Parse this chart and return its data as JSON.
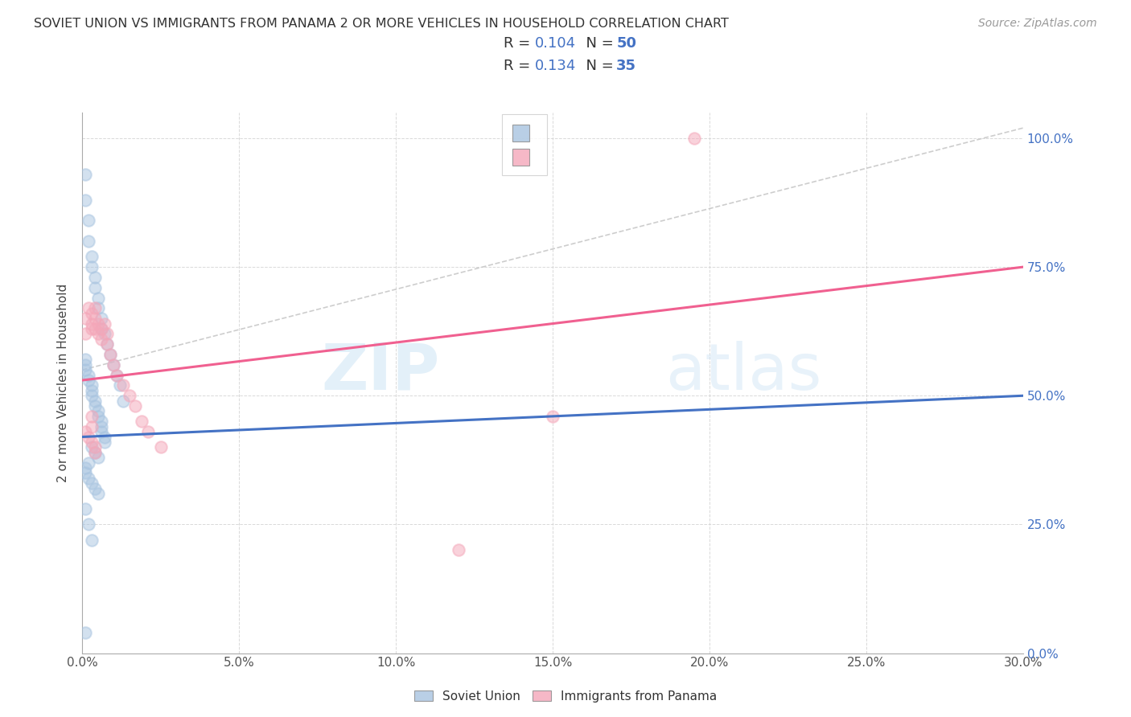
{
  "title": "SOVIET UNION VS IMMIGRANTS FROM PANAMA 2 OR MORE VEHICLES IN HOUSEHOLD CORRELATION CHART",
  "source": "Source: ZipAtlas.com",
  "ylabel": "2 or more Vehicles in Household",
  "legend_bottom_label1": "Soviet Union",
  "legend_bottom_label2": "Immigrants from Panama",
  "soviet_color": "#a8c4e0",
  "panama_color": "#f4a7b9",
  "soviet_line_color": "#4472c4",
  "panama_line_color": "#f06090",
  "diag_line_color": "#c8c8c8",
  "xmin": 0.0,
  "xmax": 0.3,
  "ymin": 0.0,
  "ymax": 1.05,
  "x_tick_vals": [
    0.0,
    0.05,
    0.1,
    0.15,
    0.2,
    0.25,
    0.3
  ],
  "x_tick_labels": [
    "0.0%",
    "5.0%",
    "10.0%",
    "15.0%",
    "20.0%",
    "25.0%",
    "30.0%"
  ],
  "y_tick_vals": [
    0.0,
    0.25,
    0.5,
    0.75,
    1.0
  ],
  "y_tick_labels": [
    "0.0%",
    "25.0%",
    "50.0%",
    "75.0%",
    "100.0%"
  ],
  "legend_r1": "R = 0.104",
  "legend_n1": "N = 50",
  "legend_r2": "R = 0.134",
  "legend_n2": "N = 35",
  "soviet_trend": [
    0.42,
    0.5
  ],
  "panama_trend": [
    0.53,
    0.75
  ],
  "soviet_x": [
    0.001,
    0.001,
    0.002,
    0.002,
    0.003,
    0.003,
    0.004,
    0.004,
    0.005,
    0.005,
    0.006,
    0.006,
    0.007,
    0.008,
    0.009,
    0.01,
    0.011,
    0.012,
    0.013,
    0.001,
    0.001,
    0.001,
    0.002,
    0.002,
    0.003,
    0.003,
    0.003,
    0.004,
    0.004,
    0.005,
    0.005,
    0.006,
    0.006,
    0.006,
    0.007,
    0.007,
    0.003,
    0.004,
    0.005,
    0.002,
    0.001,
    0.001,
    0.002,
    0.003,
    0.004,
    0.005,
    0.001,
    0.002,
    0.003,
    0.001
  ],
  "soviet_y": [
    0.93,
    0.88,
    0.84,
    0.8,
    0.77,
    0.75,
    0.73,
    0.71,
    0.69,
    0.67,
    0.65,
    0.63,
    0.62,
    0.6,
    0.58,
    0.56,
    0.54,
    0.52,
    0.49,
    0.57,
    0.56,
    0.55,
    0.54,
    0.53,
    0.52,
    0.51,
    0.5,
    0.49,
    0.48,
    0.47,
    0.46,
    0.45,
    0.44,
    0.43,
    0.42,
    0.41,
    0.4,
    0.39,
    0.38,
    0.37,
    0.36,
    0.35,
    0.34,
    0.33,
    0.32,
    0.31,
    0.28,
    0.25,
    0.22,
    0.04
  ],
  "panama_x": [
    0.001,
    0.001,
    0.002,
    0.003,
    0.003,
    0.003,
    0.004,
    0.004,
    0.004,
    0.005,
    0.005,
    0.006,
    0.006,
    0.007,
    0.008,
    0.008,
    0.009,
    0.01,
    0.011,
    0.013,
    0.015,
    0.017,
    0.019,
    0.021,
    0.025,
    0.001,
    0.002,
    0.003,
    0.004,
    0.003,
    0.003,
    0.004,
    0.15,
    0.195,
    0.12
  ],
  "panama_y": [
    0.65,
    0.62,
    0.67,
    0.66,
    0.64,
    0.63,
    0.67,
    0.65,
    0.63,
    0.64,
    0.62,
    0.63,
    0.61,
    0.64,
    0.62,
    0.6,
    0.58,
    0.56,
    0.54,
    0.52,
    0.5,
    0.48,
    0.45,
    0.43,
    0.4,
    0.43,
    0.42,
    0.41,
    0.4,
    0.46,
    0.44,
    0.39,
    0.46,
    1.0,
    0.2
  ]
}
